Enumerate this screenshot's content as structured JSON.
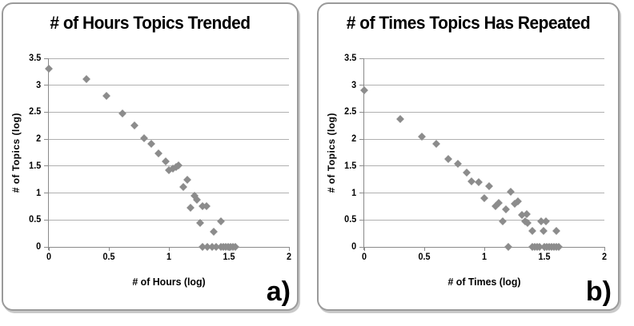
{
  "colors": {
    "marker": "#8c8c8c",
    "gridline": "#b0b0b0",
    "axis": "#8a8a8a",
    "panel_border": "#9a9a9a",
    "text": "#000000",
    "background": "#ffffff"
  },
  "chart_data": [
    {
      "type": "scatter",
      "title": "# of Hours Topics Trended",
      "xlabel": "# of Hours (log)",
      "ylabel": "# of Topics (log)",
      "corner_label": "a)",
      "xlim": [
        0,
        2
      ],
      "ylim": [
        0,
        3.5
      ],
      "x_ticks": [
        "0",
        "0.5",
        "1",
        "1.5",
        "2"
      ],
      "y_ticks": [
        "0",
        "0.5",
        "1",
        "1.5",
        "2",
        "2.5",
        "3",
        "3.5"
      ],
      "grid": "horizontal-only",
      "legend": "none",
      "marker": "diamond",
      "marker_color": "#8c8c8c",
      "points": [
        [
          0.0,
          3.3
        ],
        [
          0.31,
          3.12
        ],
        [
          0.48,
          2.8
        ],
        [
          0.61,
          2.48
        ],
        [
          0.71,
          2.26
        ],
        [
          0.79,
          2.01
        ],
        [
          0.85,
          1.92
        ],
        [
          0.91,
          1.74
        ],
        [
          0.97,
          1.59
        ],
        [
          1.0,
          1.43
        ],
        [
          1.03,
          1.46
        ],
        [
          1.06,
          1.48
        ],
        [
          1.08,
          1.52
        ],
        [
          1.12,
          1.11
        ],
        [
          1.15,
          1.25
        ],
        [
          1.18,
          0.72
        ],
        [
          1.21,
          0.95
        ],
        [
          1.23,
          0.88
        ],
        [
          1.28,
          0.75
        ],
        [
          1.31,
          0.75
        ],
        [
          1.26,
          0.45
        ],
        [
          1.37,
          0.28
        ],
        [
          1.43,
          0.48
        ],
        [
          1.28,
          0
        ],
        [
          1.32,
          0
        ],
        [
          1.36,
          0
        ],
        [
          1.39,
          0
        ],
        [
          1.43,
          0
        ],
        [
          1.45,
          0
        ],
        [
          1.47,
          0
        ],
        [
          1.49,
          0
        ],
        [
          1.51,
          0
        ],
        [
          1.53,
          0
        ],
        [
          1.55,
          0
        ]
      ]
    },
    {
      "type": "scatter",
      "title": "# of Times Topics Has Repeated",
      "xlabel": "# of Times (log)",
      "ylabel": "# of Topics (log)",
      "corner_label": "b)",
      "xlim": [
        0,
        2
      ],
      "ylim": [
        0,
        3.5
      ],
      "x_ticks": [
        "0",
        "0.5",
        "1",
        "1.5",
        "2"
      ],
      "y_ticks": [
        "0",
        "0.5",
        "1",
        "1.5",
        "2",
        "2.5",
        "3",
        "3.5"
      ],
      "grid": "horizontal-only",
      "legend": "none",
      "marker": "diamond",
      "marker_color": "#8c8c8c",
      "points": [
        [
          0.0,
          2.9
        ],
        [
          0.3,
          2.38
        ],
        [
          0.48,
          2.04
        ],
        [
          0.6,
          1.92
        ],
        [
          0.7,
          1.63
        ],
        [
          0.78,
          1.54
        ],
        [
          0.85,
          1.38
        ],
        [
          0.89,
          1.21
        ],
        [
          0.95,
          1.2
        ],
        [
          1.0,
          0.9
        ],
        [
          1.04,
          1.12
        ],
        [
          1.09,
          0.76
        ],
        [
          1.12,
          0.82
        ],
        [
          1.15,
          0.47
        ],
        [
          1.18,
          0.7
        ],
        [
          1.22,
          1.02
        ],
        [
          1.25,
          0.8
        ],
        [
          1.28,
          0.84
        ],
        [
          1.31,
          0.6
        ],
        [
          1.35,
          0.61
        ],
        [
          1.34,
          0.47
        ],
        [
          1.36,
          0.45
        ],
        [
          1.4,
          0.3
        ],
        [
          1.47,
          0.47
        ],
        [
          1.51,
          0.47
        ],
        [
          1.49,
          0.3
        ],
        [
          1.6,
          0.3
        ],
        [
          1.2,
          0
        ],
        [
          1.4,
          0
        ],
        [
          1.42,
          0
        ],
        [
          1.44,
          0
        ],
        [
          1.46,
          0
        ],
        [
          1.5,
          0
        ],
        [
          1.52,
          0
        ],
        [
          1.54,
          0
        ],
        [
          1.56,
          0
        ],
        [
          1.58,
          0
        ],
        [
          1.6,
          0
        ],
        [
          1.62,
          0
        ]
      ]
    }
  ]
}
